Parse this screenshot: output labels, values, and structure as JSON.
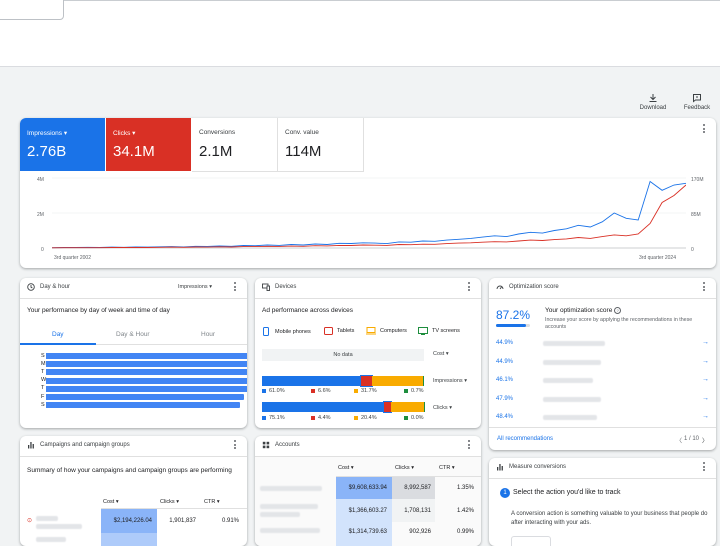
{
  "toolbar": {
    "download_label": "Download",
    "feedback_label": "Feedback"
  },
  "metrics": [
    {
      "label": "Impressions",
      "value": "2.76B",
      "color": "#1a73e8",
      "selected": true
    },
    {
      "label": "Clicks",
      "value": "34.1M",
      "color": "#d93025",
      "selected": true
    },
    {
      "label": "Conversions",
      "value": "2.1M"
    },
    {
      "label": "Conv. value",
      "value": "114M"
    }
  ],
  "chart_data": {
    "type": "line",
    "x_start_label": "3rd quarter 2002",
    "x_end_label": "3rd quarter 2024",
    "y_left_ticks": [
      "4M",
      "2M",
      "0"
    ],
    "y_right_ticks": [
      "170M",
      "85M",
      "0"
    ],
    "series": [
      {
        "name": "Impressions",
        "color": "#1a73e8",
        "values": [
          0.02,
          0.03,
          0.03,
          0.04,
          0.03,
          0.05,
          0.04,
          0.06,
          0.05,
          0.07,
          0.08,
          0.06,
          0.1,
          0.09,
          0.12,
          0.1,
          0.14,
          0.13,
          0.17,
          0.15,
          0.2,
          0.17,
          0.23,
          0.2,
          0.27,
          0.26,
          0.3,
          0.28,
          0.25,
          0.35,
          0.33,
          0.4,
          0.38,
          0.45,
          0.5,
          0.55,
          0.62,
          0.7,
          0.65,
          0.8,
          0.9,
          0.85,
          1.0,
          1.1,
          1.3,
          1.2,
          1.5,
          2.0,
          1.7,
          1.6,
          3.8,
          3.3,
          3.6,
          3.7
        ]
      },
      {
        "name": "Clicks",
        "color": "#d93025",
        "values": [
          0.01,
          0.02,
          0.02,
          0.02,
          0.02,
          0.03,
          0.03,
          0.03,
          0.03,
          0.04,
          0.05,
          0.04,
          0.06,
          0.05,
          0.07,
          0.06,
          0.08,
          0.08,
          0.1,
          0.09,
          0.11,
          0.1,
          0.13,
          0.12,
          0.15,
          0.14,
          0.17,
          0.16,
          0.15,
          0.2,
          0.19,
          0.22,
          0.21,
          0.25,
          0.28,
          0.3,
          0.33,
          0.36,
          0.35,
          0.4,
          0.45,
          0.43,
          0.48,
          0.52,
          0.6,
          0.55,
          0.65,
          0.75,
          0.7,
          0.8,
          1.4,
          2.6,
          3.0,
          3.6
        ]
      }
    ],
    "ylim": [
      0,
      4
    ]
  },
  "day_hour": {
    "title": "Day & hour",
    "metric_select": "Impressions",
    "subtitle": "Your performance by day of week and time of day",
    "tabs": [
      "Day",
      "Day & Hour",
      "Hour"
    ],
    "days": [
      "S",
      "M",
      "T",
      "W",
      "T",
      "F",
      "S"
    ],
    "values": [
      0.95,
      0.97,
      0.94,
      0.93,
      0.92,
      0.9,
      0.88
    ]
  },
  "devices": {
    "title": "Devices",
    "subtitle": "Ad performance across devices",
    "legend": [
      {
        "label": "Mobile phones",
        "color": "#1a73e8"
      },
      {
        "label": "Tablets",
        "color": "#d93025"
      },
      {
        "label": "Computers",
        "color": "#f9ab00"
      },
      {
        "label": "TV screens",
        "color": "#1e8e3e"
      }
    ],
    "rows": [
      {
        "metric": "Cost",
        "no_data": "No data"
      },
      {
        "metric": "Impressions",
        "values": [
          "61.0%",
          "6.6%",
          "31.7%",
          "0.7%"
        ],
        "fractions": [
          0.61,
          0.066,
          0.317,
          0.007
        ]
      },
      {
        "metric": "Clicks",
        "values": [
          "75.1%",
          "4.4%",
          "20.4%",
          "0.0%"
        ],
        "fractions": [
          0.751,
          0.044,
          0.204,
          0.001
        ]
      }
    ]
  },
  "optimization": {
    "title": "Optimization score",
    "score": "87.2%",
    "score_fraction": 0.872,
    "heading": "Your optimization score",
    "description": "Increase your score by applying the recommendations in these accounts",
    "rows": [
      "44.9%",
      "44.9%",
      "46.1%",
      "47.9%",
      "48.4%"
    ],
    "all_link": "All recommendations",
    "pager": "1 / 10"
  },
  "campaigns": {
    "title": "Campaigns and campaign groups",
    "subtitle": "Summary of how your campaigns and campaign groups are performing",
    "headers": [
      "Cost",
      "Clicks",
      "CTR"
    ],
    "row": [
      "$2,194,226.04",
      "1,901,837",
      "0.91%"
    ]
  },
  "accounts": {
    "title": "Accounts",
    "headers": [
      "Cost",
      "Clicks",
      "CTR"
    ],
    "rows": [
      [
        "$9,608,633.94",
        "8,992,587",
        "1.35%"
      ],
      [
        "$1,366,603.27",
        "1,708,131",
        "1.42%"
      ],
      [
        "$1,314,739.63",
        "902,926",
        "0.99%"
      ]
    ]
  },
  "measure": {
    "title": "Measure conversions",
    "step": "1",
    "step_title": "Select the action you'd like to track",
    "description": "A conversion action is something valuable to your business that people do after interacting with your ads."
  }
}
